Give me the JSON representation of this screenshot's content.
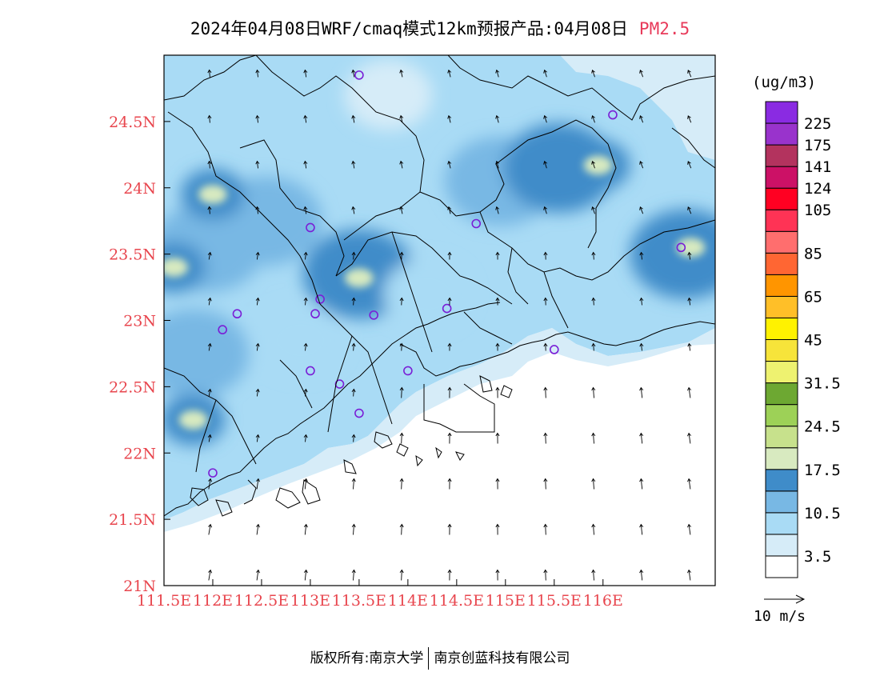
{
  "title": {
    "main": "2024年04月08日WRF/cmaq模式12km预报产品:04月08日",
    "pollutant": "PM2.5",
    "pollutant_color": "#e83a5a"
  },
  "map": {
    "lat_ticks": [
      "24.5N",
      "24N",
      "23.5N",
      "23N",
      "22.5N",
      "22N",
      "21.5N",
      "21N"
    ],
    "lat_values": [
      24.5,
      24,
      23.5,
      23,
      22.5,
      22,
      21.5,
      21
    ],
    "lon_ticks": [
      "111.5E",
      "112E",
      "112.5E",
      "113E",
      "113.5E",
      "114E",
      "114.5E",
      "115E",
      "115.5E",
      "116E"
    ],
    "lon_values": [
      111.5,
      112,
      112.5,
      113,
      113.5,
      114,
      114.5,
      115,
      115.5,
      116
    ],
    "lon_range": [
      111.5,
      117.15
    ],
    "lat_range": [
      21.0,
      25.0
    ],
    "tick_color": "#e8464e",
    "stations": [
      {
        "lon": 113.5,
        "lat": 24.85
      },
      {
        "lon": 116.1,
        "lat": 24.55
      },
      {
        "lon": 113.0,
        "lat": 23.7
      },
      {
        "lon": 114.7,
        "lat": 23.73
      },
      {
        "lon": 116.8,
        "lat": 23.55
      },
      {
        "lon": 112.25,
        "lat": 23.05
      },
      {
        "lon": 112.1,
        "lat": 22.93
      },
      {
        "lon": 113.05,
        "lat": 23.05
      },
      {
        "lon": 113.1,
        "lat": 23.16
      },
      {
        "lon": 113.65,
        "lat": 23.04
      },
      {
        "lon": 114.4,
        "lat": 23.09
      },
      {
        "lon": 115.5,
        "lat": 22.78
      },
      {
        "lon": 113.0,
        "lat": 22.62
      },
      {
        "lon": 113.3,
        "lat": 22.52
      },
      {
        "lon": 114.0,
        "lat": 22.62
      },
      {
        "lon": 113.5,
        "lat": 22.3
      },
      {
        "lon": 112.0,
        "lat": 21.85
      }
    ]
  },
  "legend": {
    "unit": "(ug/m3)",
    "colors": [
      "#ffffff",
      "#d6ecf8",
      "#a9dbf5",
      "#78b8e4",
      "#3f8cc9",
      "#d8eac0",
      "#c7e18c",
      "#9dd157",
      "#6da832",
      "#eef270",
      "#f7e43a",
      "#fff200",
      "#ffbf28",
      "#ff9500",
      "#ff6633",
      "#ff6e6e",
      "#ff3355",
      "#ff0022",
      "#cc1166",
      "#b3335e",
      "#9933cc",
      "#8a2be2"
    ],
    "labels": [
      "3.5",
      "10.5",
      "17.5",
      "24.5",
      "31.5",
      "45",
      "65",
      "85",
      "105",
      "124",
      "141",
      "175",
      "225"
    ],
    "label_boxes": [
      1,
      3,
      5,
      7,
      9,
      11,
      13,
      15,
      17,
      18,
      19,
      20,
      21
    ],
    "wind_ref": "10 m/s"
  },
  "chart_data": {
    "type": "heatmap",
    "variable": "PM2.5",
    "unit": "(ug/m3)",
    "date": "04月08日",
    "x_ticks": [
      "111.5E",
      "112E",
      "112.5E",
      "113E",
      "113.5E",
      "114E",
      "114.5E",
      "115E",
      "115.5E",
      "116E"
    ],
    "y_ticks": [
      "24.5N",
      "24N",
      "23.5N",
      "23N",
      "22.5N",
      "22N",
      "21.5N",
      "21N"
    ],
    "color_levels": [
      3.5,
      10.5,
      17.5,
      24.5,
      31.5,
      45,
      65,
      85,
      105,
      124,
      141,
      175,
      225
    ],
    "blobs": [
      {
        "lon": 112.55,
        "lat": 23.75,
        "value": 13
      },
      {
        "lon": 111.95,
        "lat": 23.55,
        "value": 13
      },
      {
        "lon": 112.0,
        "lat": 23.95,
        "value": 19
      },
      {
        "lon": 111.6,
        "lat": 23.4,
        "value": 21
      },
      {
        "lon": 111.8,
        "lat": 22.75,
        "value": 13
      },
      {
        "lon": 111.8,
        "lat": 22.25,
        "value": 19
      },
      {
        "lon": 113.5,
        "lat": 23.35,
        "value": 14
      },
      {
        "lon": 113.5,
        "lat": 23.32,
        "value": 20
      },
      {
        "lon": 114.95,
        "lat": 24.05,
        "value": 13
      },
      {
        "lon": 115.55,
        "lat": 24.15,
        "value": 14
      },
      {
        "lon": 115.95,
        "lat": 24.17,
        "value": 19
      },
      {
        "lon": 116.85,
        "lat": 23.5,
        "value": 14
      },
      {
        "lon": 116.9,
        "lat": 23.55,
        "value": 22
      },
      {
        "lon": 112.9,
        "lat": 22.85,
        "value": 9
      },
      {
        "lon": 114.2,
        "lat": 23.2,
        "value": 9
      },
      {
        "lon": 113.8,
        "lat": 24.7,
        "value": 4
      }
    ]
  },
  "footer": {
    "left": "版权所有:南京大学",
    "right": "南京创蓝科技有限公司"
  }
}
